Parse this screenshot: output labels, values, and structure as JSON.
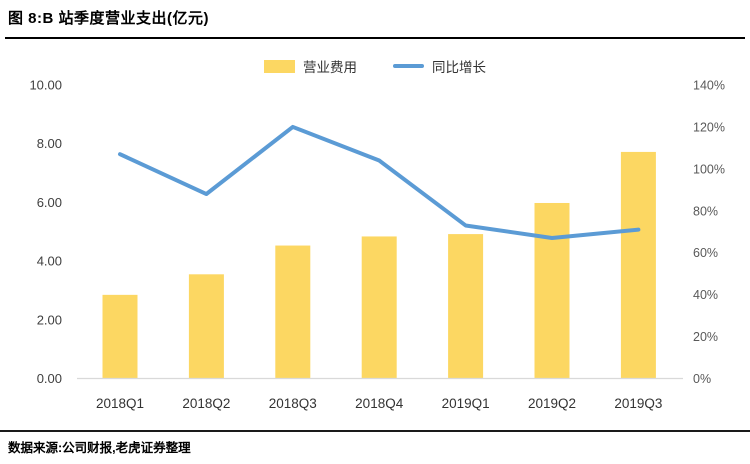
{
  "header": {
    "title": "图 8:B 站季度营业支出(亿元)"
  },
  "chart_data": {
    "type": "bar",
    "subtype": "bar-line-combo",
    "title": "B 站季度营业支出(亿元)",
    "categories": [
      "2018Q1",
      "2018Q2",
      "2018Q3",
      "2018Q4",
      "2019Q1",
      "2019Q2",
      "2019Q3"
    ],
    "series": [
      {
        "name": "营业费用",
        "kind": "bar",
        "axis": "left",
        "unit": "亿元",
        "color": "#FCD762",
        "values": [
          2.85,
          3.55,
          4.53,
          4.84,
          4.92,
          5.98,
          7.72
        ]
      },
      {
        "name": "同比增长",
        "kind": "line",
        "axis": "right",
        "unit": "%",
        "color": "#5B9BD5",
        "values": [
          107,
          88,
          120,
          104,
          73,
          67,
          71
        ]
      }
    ],
    "left_axis": {
      "min": 0,
      "max": 10,
      "step": 2,
      "decimals": 2,
      "tick_labels": [
        "0.00",
        "2.00",
        "4.00",
        "6.00",
        "8.00",
        "10.00"
      ]
    },
    "right_axis": {
      "min": 0,
      "max": 140,
      "step": 20,
      "suffix": "%",
      "tick_labels": [
        "0%",
        "20%",
        "40%",
        "60%",
        "80%",
        "100%",
        "120%",
        "140%"
      ]
    },
    "legend_position": "top-center",
    "grid": false,
    "axis_line_color": "#D9D9D9"
  },
  "footer": {
    "source": "数据来源:公司财报,老虎证券整理"
  }
}
